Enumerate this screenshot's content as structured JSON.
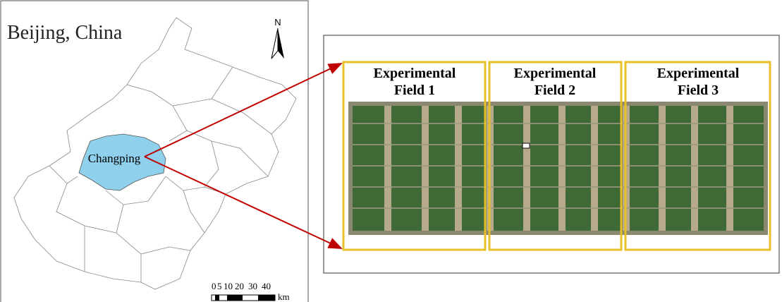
{
  "map": {
    "title": "Beijing, China",
    "north": "N",
    "district": "Changping",
    "scale": {
      "labels": [
        "0",
        "5",
        "10",
        "20",
        "30",
        "40"
      ],
      "unit": "km"
    }
  },
  "fields": [
    {
      "label": "Experimental Field 1"
    },
    {
      "label": "Experimental Field 2"
    },
    {
      "label": "Experimental Field 3"
    }
  ]
}
